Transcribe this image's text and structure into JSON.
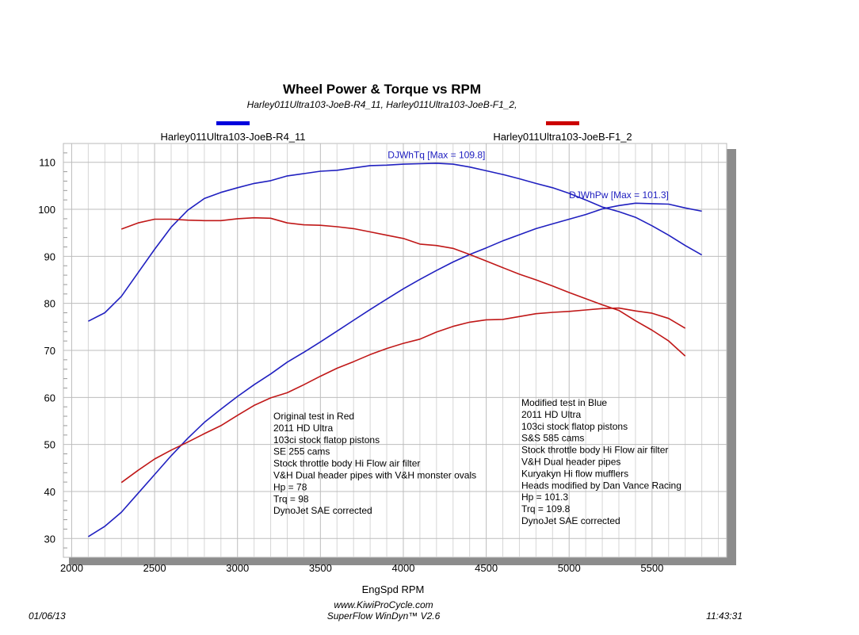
{
  "chart_data": {
    "type": "line",
    "title": "Wheel Power & Torque vs RPM",
    "subtitle": "Harley011Ultra103-JoeB-R4_11, Harley011Ultra103-JoeB-F1_2,",
    "xlabel": "EngSpd  RPM",
    "ylabel": "",
    "xlim": [
      1950,
      5950
    ],
    "ylim": [
      26,
      114
    ],
    "x_ticks": [
      2000,
      2500,
      3000,
      3500,
      4000,
      4500,
      5000,
      5500
    ],
    "y_ticks": [
      30,
      40,
      50,
      60,
      70,
      80,
      90,
      100,
      110
    ],
    "grid": true,
    "legend_placement": "top",
    "legend": [
      {
        "name": "Harley011Ultra103-JoeB-R4_11",
        "color": "#0000dd"
      },
      {
        "name": "Harley011Ultra103-JoeB-F1_2",
        "color": "#cc0000"
      }
    ],
    "series": [
      {
        "run": "Harley011Ultra103-JoeB-R4_11",
        "measure": "torque",
        "color": "#2020c0",
        "x": [
          2100,
          2200,
          2300,
          2400,
          2500,
          2600,
          2700,
          2800,
          2900,
          3000,
          3100,
          3200,
          3300,
          3400,
          3500,
          3600,
          3700,
          3800,
          3900,
          4000,
          4100,
          4200,
          4300,
          4400,
          4500,
          4600,
          4700,
          4800,
          4900,
          5000,
          5100,
          5200,
          5300,
          5400,
          5500,
          5600,
          5700,
          5800
        ],
        "y": [
          76.2,
          78.0,
          81.5,
          86.5,
          91.5,
          96.2,
          99.8,
          102.3,
          103.6,
          104.6,
          105.5,
          106.1,
          107.1,
          107.6,
          108.1,
          108.3,
          108.8,
          109.3,
          109.4,
          109.6,
          109.7,
          109.8,
          109.6,
          109.0,
          108.2,
          107.4,
          106.5,
          105.5,
          104.6,
          103.4,
          102.0,
          100.5,
          99.5,
          98.3,
          96.5,
          94.5,
          92.3,
          90.3
        ]
      },
      {
        "run": "Harley011Ultra103-JoeB-R4_11",
        "measure": "power",
        "color": "#2020c0",
        "x": [
          2100,
          2200,
          2300,
          2400,
          2500,
          2600,
          2700,
          2800,
          2900,
          3000,
          3100,
          3200,
          3300,
          3400,
          3500,
          3600,
          3700,
          3800,
          3900,
          4000,
          4100,
          4200,
          4300,
          4400,
          4500,
          4600,
          4700,
          4800,
          4900,
          5000,
          5100,
          5200,
          5300,
          5400,
          5500,
          5600,
          5700,
          5800
        ],
        "y": [
          30.4,
          32.6,
          35.6,
          39.6,
          43.6,
          47.6,
          51.3,
          54.7,
          57.5,
          60.2,
          62.7,
          65.0,
          67.5,
          69.6,
          71.8,
          74.1,
          76.4,
          78.7,
          80.9,
          83.1,
          85.1,
          87.0,
          88.8,
          90.4,
          91.8,
          93.3,
          94.6,
          95.9,
          96.9,
          97.9,
          98.9,
          100.1,
          100.8,
          101.3,
          101.2,
          101.1,
          100.3,
          99.6
        ]
      },
      {
        "run": "Harley011Ultra103-JoeB-F1_2",
        "measure": "torque",
        "color": "#c01818",
        "x": [
          2300,
          2400,
          2500,
          2600,
          2700,
          2800,
          2900,
          3000,
          3100,
          3200,
          3300,
          3400,
          3500,
          3600,
          3700,
          3800,
          3900,
          4000,
          4100,
          4200,
          4300,
          4400,
          4500,
          4600,
          4700,
          4800,
          4900,
          5000,
          5100,
          5200,
          5300,
          5400,
          5500,
          5600,
          5700
        ],
        "y": [
          95.8,
          97.1,
          97.9,
          97.9,
          97.7,
          97.6,
          97.6,
          98.0,
          98.2,
          98.1,
          97.1,
          96.7,
          96.6,
          96.3,
          95.9,
          95.2,
          94.5,
          93.8,
          92.6,
          92.3,
          91.7,
          90.4,
          89.0,
          87.6,
          86.2,
          85.0,
          83.7,
          82.3,
          81.0,
          79.7,
          78.5,
          76.3,
          74.3,
          72.0,
          68.8
        ]
      },
      {
        "run": "Harley011Ultra103-JoeB-F1_2",
        "measure": "power",
        "color": "#c01818",
        "x": [
          2300,
          2400,
          2500,
          2600,
          2700,
          2800,
          2900,
          3000,
          3100,
          3200,
          3300,
          3400,
          3500,
          3600,
          3700,
          3800,
          3900,
          4000,
          4100,
          4200,
          4300,
          4400,
          4500,
          4600,
          4700,
          4800,
          4900,
          5000,
          5100,
          5200,
          5300,
          5400,
          5500,
          5600,
          5700
        ],
        "y": [
          41.9,
          44.5,
          46.9,
          48.8,
          50.5,
          52.3,
          54.0,
          56.2,
          58.3,
          59.9,
          61.0,
          62.7,
          64.5,
          66.2,
          67.6,
          69.1,
          70.4,
          71.5,
          72.4,
          73.9,
          75.1,
          76.0,
          76.5,
          76.6,
          77.2,
          77.8,
          78.1,
          78.3,
          78.6,
          78.9,
          79.0,
          78.4,
          77.9,
          76.8,
          74.7
        ]
      }
    ],
    "annotations": [
      {
        "text": "DJWhTq [Max = 109.8]",
        "x": 4200,
        "y": 110.9
      },
      {
        "text": "DJWhPw [Max = 101.3]",
        "x": 5300,
        "y": 102.4
      }
    ],
    "notes": {
      "original": [
        "Original test in Red",
        "2011 HD Ultra",
        "103ci stock flatop pistons",
        "SE 255 cams",
        "Stock throttle body Hi Flow air filter",
        "V&H Dual header pipes with V&H monster ovals",
        "Hp =  78",
        "Trq = 98",
        "DynoJet SAE corrected"
      ],
      "modified": [
        "Modified test in Blue",
        "2011 HD Ultra",
        "103ci stock flatop pistons",
        "S&S 585 cams",
        "Stock throttle body Hi Flow air filter",
        "V&H Dual header pipes",
        "Kuryakyn Hi flow mufflers",
        "Heads modified by Dan Vance Racing",
        "Hp   = 101.3",
        "Trq  = 109.8",
        "DynoJet SAE corrected"
      ]
    }
  },
  "footer": {
    "date": "01/06/13",
    "website": "www.KiwiProCycle.com",
    "software": "SuperFlow WinDyn™ V2.6",
    "time": "11:43:31"
  }
}
